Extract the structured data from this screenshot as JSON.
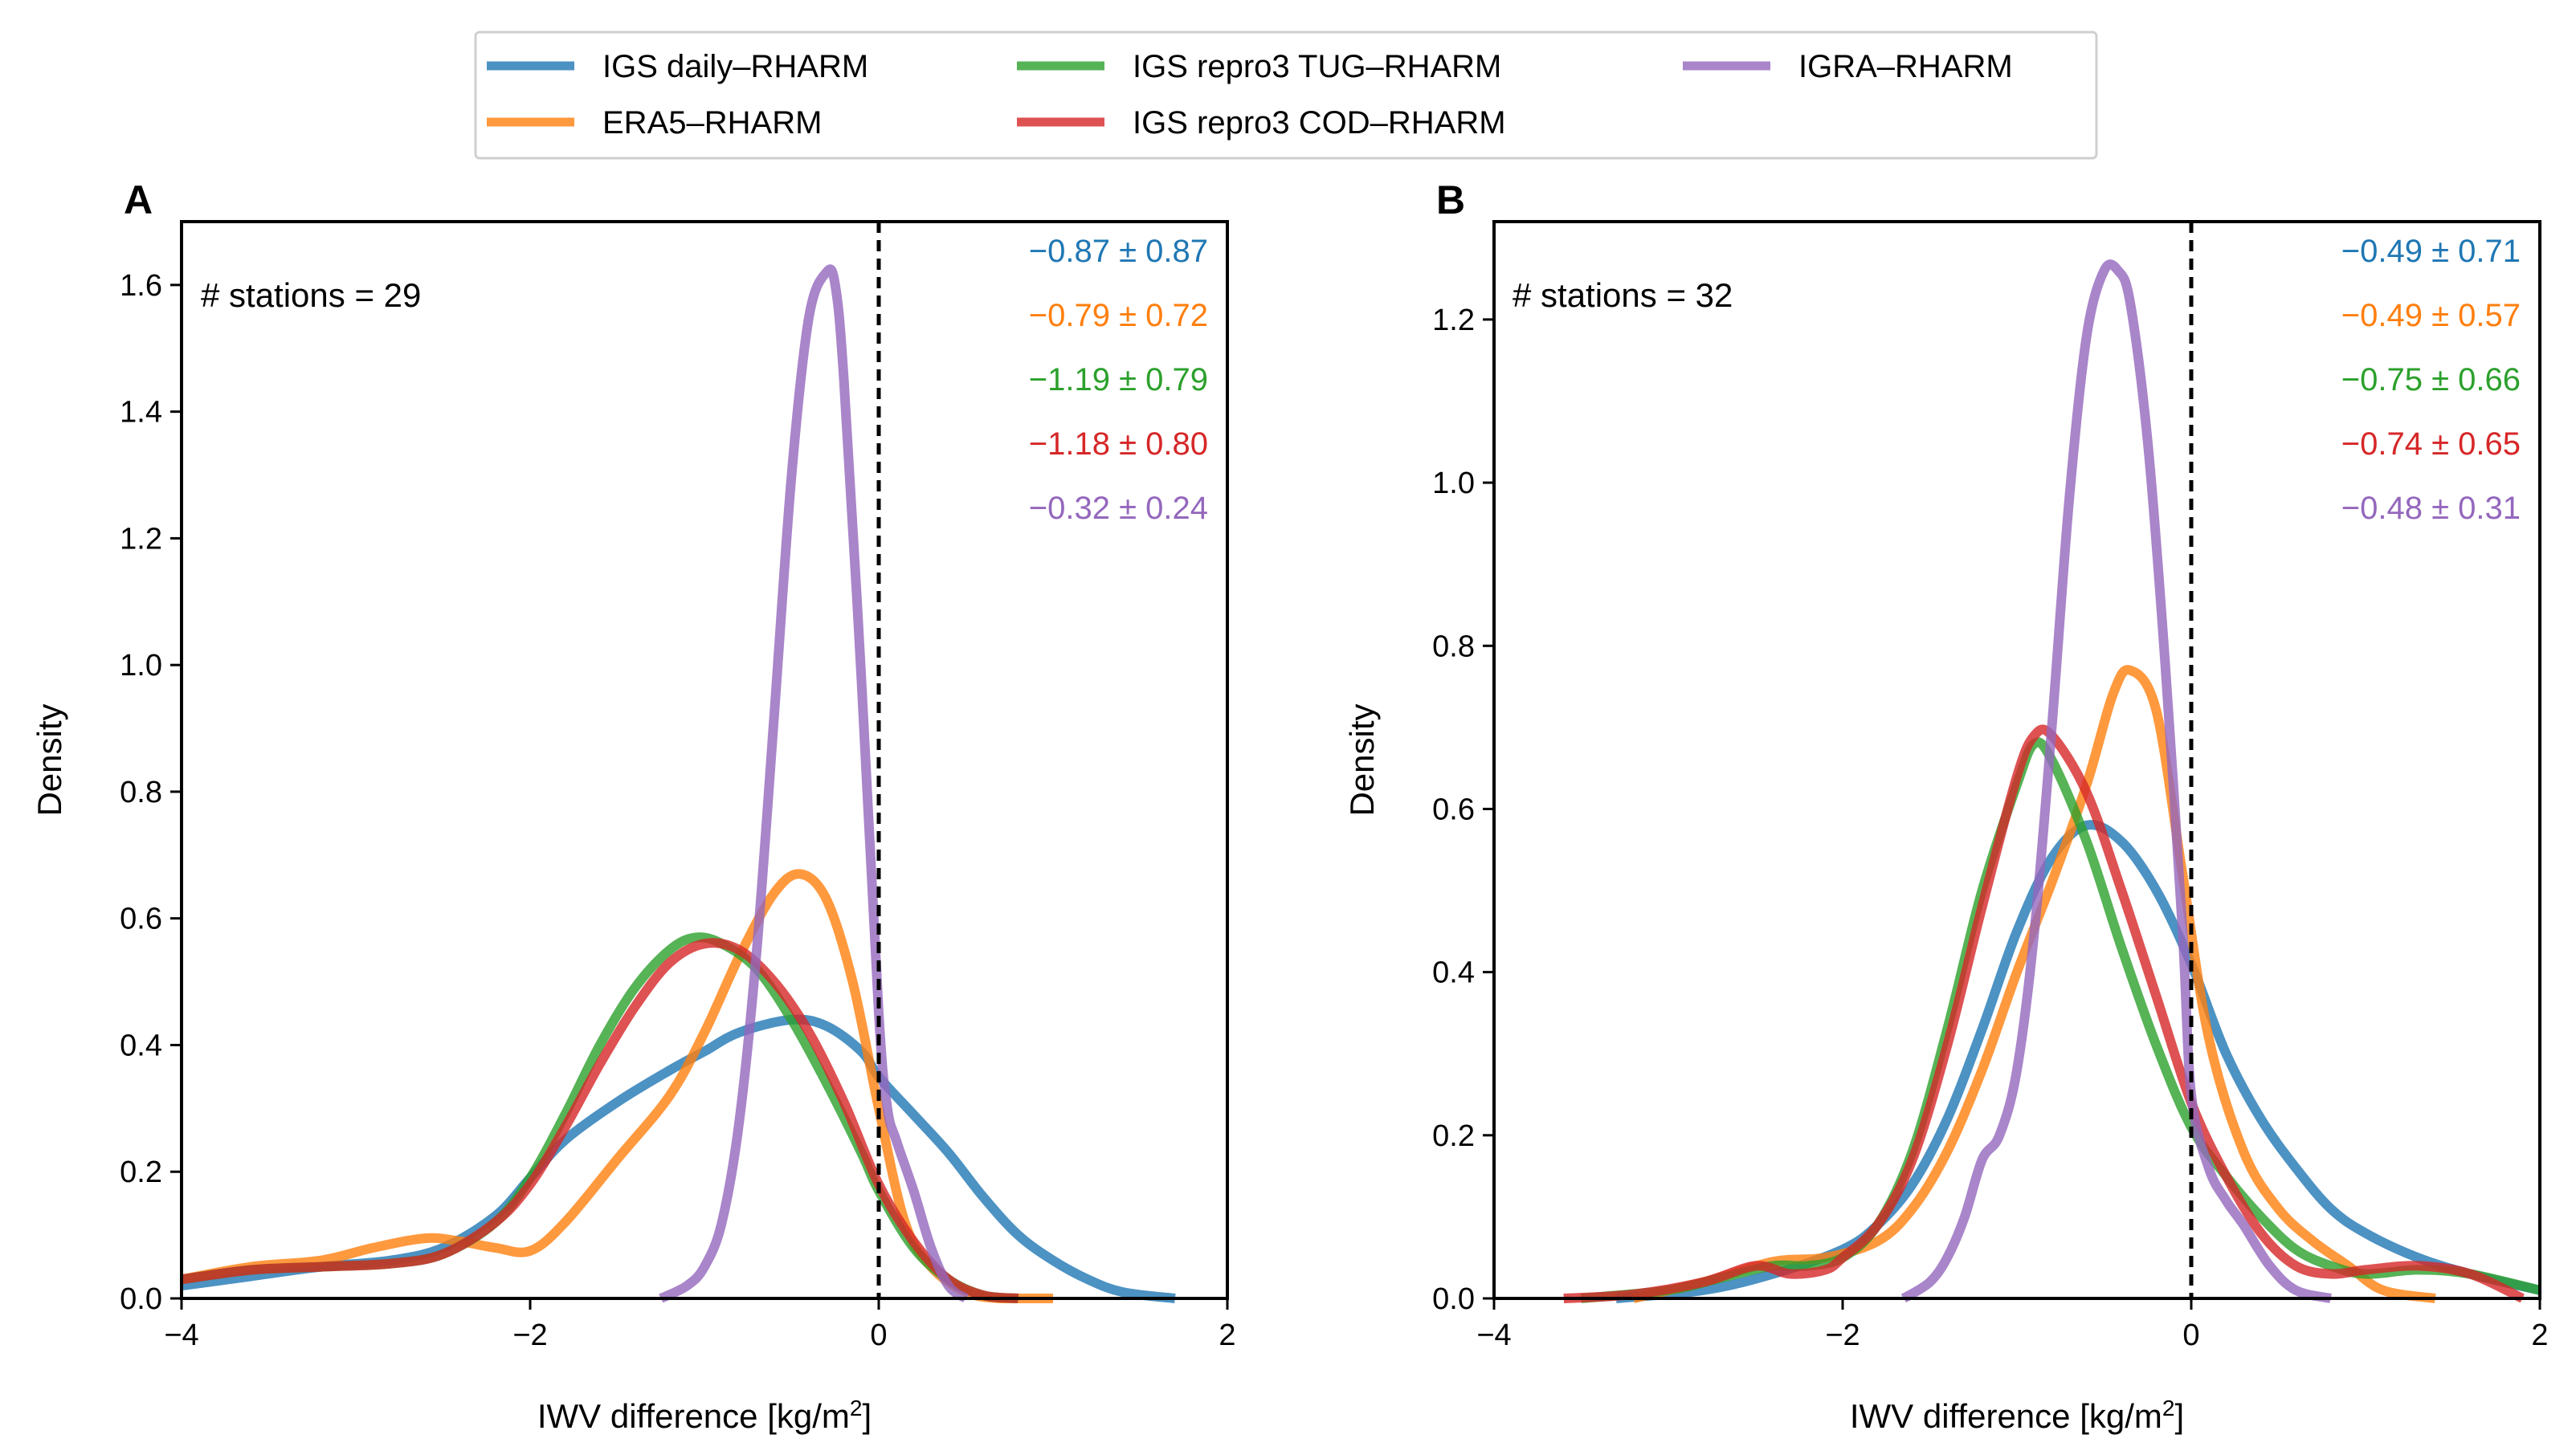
{
  "figure": {
    "legend": [
      {
        "label": "IGS daily–RHARM",
        "color": "#1f77b4"
      },
      {
        "label": "ERA5–RHARM",
        "color": "#ff7f0e"
      },
      {
        "label": "IGS repro3 TUG–RHARM",
        "color": "#2ca02c"
      },
      {
        "label": "IGS repro3 COD–RHARM",
        "color": "#d62728"
      },
      {
        "label": "IGRA–RHARM",
        "color": "#9467bd"
      }
    ]
  },
  "chart_data": [
    {
      "type": "line",
      "panel": "A",
      "xlabel": "IWV difference [kg/m",
      "xlabel_sup": "2",
      "xlabel_end": "]",
      "ylabel": "Density",
      "xlim": [
        -4,
        2
      ],
      "ylim": [
        0,
        1.7
      ],
      "xticks": [
        -4,
        -2,
        0,
        2
      ],
      "xtick_labels": [
        "−4",
        "−2",
        "0",
        "2"
      ],
      "yticks": [
        0.0,
        0.2,
        0.4,
        0.6,
        0.8,
        1.0,
        1.2,
        1.4,
        1.6
      ],
      "ytick_labels": [
        "0.0",
        "0.2",
        "0.4",
        "0.6",
        "0.8",
        "1.0",
        "1.2",
        "1.4",
        "1.6"
      ],
      "vline_x": 0,
      "annotation": "# stations = 29",
      "stats": [
        "−0.87 ± 0.87",
        "−0.79 ± 0.72",
        "−1.19 ± 0.79",
        "−1.18 ± 0.80",
        "−0.32 ± 0.24"
      ],
      "series": [
        {
          "name": "IGS daily–RHARM",
          "x": [
            -4.0,
            -3.6,
            -3.2,
            -2.8,
            -2.5,
            -2.2,
            -2.0,
            -1.8,
            -1.5,
            -1.2,
            -1.0,
            -0.8,
            -0.5,
            -0.3,
            -0.1,
            0.0,
            0.2,
            0.4,
            0.6,
            0.8,
            1.0,
            1.2,
            1.4,
            1.7
          ],
          "y": [
            0.02,
            0.035,
            0.05,
            0.06,
            0.08,
            0.13,
            0.19,
            0.25,
            0.31,
            0.36,
            0.39,
            0.42,
            0.44,
            0.43,
            0.39,
            0.35,
            0.29,
            0.23,
            0.16,
            0.1,
            0.06,
            0.03,
            0.01,
            0.0
          ]
        },
        {
          "name": "ERA5–RHARM",
          "x": [
            -4.0,
            -3.6,
            -3.2,
            -2.9,
            -2.6,
            -2.4,
            -2.2,
            -2.0,
            -1.8,
            -1.5,
            -1.2,
            -1.0,
            -0.8,
            -0.6,
            -0.45,
            -0.3,
            -0.15,
            0.0,
            0.15,
            0.3,
            0.5,
            0.7,
            1.0
          ],
          "y": [
            0.03,
            0.05,
            0.06,
            0.08,
            0.095,
            0.09,
            0.08,
            0.075,
            0.12,
            0.22,
            0.32,
            0.42,
            0.54,
            0.64,
            0.67,
            0.63,
            0.5,
            0.3,
            0.12,
            0.05,
            0.01,
            0.0,
            0.0
          ]
        },
        {
          "name": "IGS repro3 TUG–RHARM",
          "x": [
            -4.0,
            -3.6,
            -3.2,
            -2.8,
            -2.5,
            -2.2,
            -2.0,
            -1.8,
            -1.6,
            -1.4,
            -1.2,
            -1.05,
            -0.9,
            -0.7,
            -0.5,
            -0.3,
            -0.1,
            0.0,
            0.2,
            0.4,
            0.6,
            0.8
          ],
          "y": [
            0.03,
            0.045,
            0.05,
            0.055,
            0.07,
            0.12,
            0.19,
            0.29,
            0.4,
            0.49,
            0.55,
            0.57,
            0.56,
            0.52,
            0.44,
            0.34,
            0.23,
            0.17,
            0.08,
            0.03,
            0.005,
            0.0
          ]
        },
        {
          "name": "IGS repro3 COD–RHARM",
          "x": [
            -4.0,
            -3.6,
            -3.2,
            -2.8,
            -2.5,
            -2.2,
            -2.0,
            -1.8,
            -1.6,
            -1.4,
            -1.2,
            -1.0,
            -0.8,
            -0.6,
            -0.4,
            -0.2,
            0.0,
            0.2,
            0.4,
            0.6,
            0.8
          ],
          "y": [
            0.03,
            0.045,
            0.05,
            0.055,
            0.07,
            0.12,
            0.18,
            0.27,
            0.37,
            0.46,
            0.53,
            0.56,
            0.55,
            0.5,
            0.42,
            0.31,
            0.18,
            0.09,
            0.03,
            0.005,
            0.0
          ]
        },
        {
          "name": "IGRA–RHARM",
          "x": [
            -1.25,
            -1.1,
            -1.0,
            -0.9,
            -0.8,
            -0.7,
            -0.6,
            -0.5,
            -0.4,
            -0.3,
            -0.25,
            -0.2,
            -0.1,
            0.0,
            0.05,
            0.1,
            0.2,
            0.3,
            0.4,
            0.5
          ],
          "y": [
            0.0,
            0.02,
            0.05,
            0.12,
            0.28,
            0.55,
            0.92,
            1.3,
            1.55,
            1.62,
            1.6,
            1.45,
            0.98,
            0.45,
            0.3,
            0.25,
            0.17,
            0.08,
            0.02,
            0.0
          ]
        }
      ]
    },
    {
      "type": "line",
      "panel": "B",
      "xlabel": "IWV difference [kg/m",
      "xlabel_sup": "2",
      "xlabel_end": "]",
      "ylabel": "Density",
      "xlim": [
        -4,
        2
      ],
      "ylim": [
        0,
        1.32
      ],
      "xticks": [
        -4,
        -2,
        0,
        2
      ],
      "xtick_labels": [
        "−4",
        "−2",
        "0",
        "2"
      ],
      "yticks": [
        0.0,
        0.2,
        0.4,
        0.6,
        0.8,
        1.0,
        1.2
      ],
      "ytick_labels": [
        "0.0",
        "0.2",
        "0.4",
        "0.6",
        "0.8",
        "1.0",
        "1.2"
      ],
      "vline_x": 0,
      "annotation": "# stations = 32",
      "stats": [
        "−0.49 ± 0.71",
        "−0.49 ± 0.57",
        "−0.75 ± 0.66",
        "−0.74 ± 0.65",
        "−0.48 ± 0.31"
      ],
      "series": [
        {
          "name": "IGS daily–RHARM",
          "x": [
            -3.3,
            -2.8,
            -2.4,
            -2.0,
            -1.8,
            -1.6,
            -1.4,
            -1.2,
            -1.0,
            -0.8,
            -0.6,
            -0.4,
            -0.2,
            0.0,
            0.2,
            0.4,
            0.6,
            0.8,
            1.0,
            1.3,
            1.6,
            2.0
          ],
          "y": [
            0.0,
            0.01,
            0.03,
            0.06,
            0.09,
            0.14,
            0.22,
            0.33,
            0.45,
            0.54,
            0.58,
            0.56,
            0.5,
            0.41,
            0.3,
            0.22,
            0.16,
            0.11,
            0.08,
            0.05,
            0.03,
            0.01
          ]
        },
        {
          "name": "ERA5–RHARM",
          "x": [
            -3.2,
            -2.8,
            -2.4,
            -2.1,
            -1.8,
            -1.6,
            -1.4,
            -1.2,
            -1.0,
            -0.8,
            -0.6,
            -0.45,
            -0.35,
            -0.2,
            -0.05,
            0.1,
            0.3,
            0.5,
            0.7,
            0.9,
            1.1,
            1.4
          ],
          "y": [
            0.0,
            0.02,
            0.045,
            0.05,
            0.07,
            0.11,
            0.18,
            0.28,
            0.4,
            0.51,
            0.63,
            0.74,
            0.77,
            0.72,
            0.52,
            0.32,
            0.18,
            0.11,
            0.07,
            0.04,
            0.01,
            0.0
          ]
        },
        {
          "name": "IGS repro3 TUG–RHARM",
          "x": [
            -3.5,
            -3.0,
            -2.7,
            -2.4,
            -2.2,
            -2.0,
            -1.8,
            -1.6,
            -1.4,
            -1.2,
            -1.0,
            -0.9,
            -0.8,
            -0.6,
            -0.4,
            -0.2,
            0.0,
            0.2,
            0.4,
            0.6,
            0.8,
            1.0,
            1.3,
            1.6,
            2.0
          ],
          "y": [
            0.0,
            0.01,
            0.025,
            0.04,
            0.04,
            0.05,
            0.09,
            0.18,
            0.33,
            0.5,
            0.63,
            0.68,
            0.66,
            0.56,
            0.43,
            0.31,
            0.21,
            0.15,
            0.1,
            0.06,
            0.04,
            0.03,
            0.035,
            0.03,
            0.01
          ]
        },
        {
          "name": "IGS repro3 COD–RHARM",
          "x": [
            -3.6,
            -3.2,
            -2.8,
            -2.5,
            -2.3,
            -2.1,
            -2.0,
            -1.8,
            -1.6,
            -1.4,
            -1.2,
            -1.0,
            -0.9,
            -0.8,
            -0.6,
            -0.4,
            -0.2,
            0.0,
            0.2,
            0.4,
            0.6,
            0.8,
            1.0,
            1.3,
            1.6,
            1.9
          ],
          "y": [
            0.0,
            0.005,
            0.02,
            0.04,
            0.03,
            0.035,
            0.05,
            0.09,
            0.17,
            0.31,
            0.48,
            0.64,
            0.69,
            0.69,
            0.62,
            0.5,
            0.37,
            0.24,
            0.15,
            0.08,
            0.04,
            0.03,
            0.035,
            0.04,
            0.03,
            0.0
          ]
        },
        {
          "name": "IGRA–RHARM",
          "x": [
            -1.65,
            -1.5,
            -1.4,
            -1.3,
            -1.2,
            -1.1,
            -1.0,
            -0.9,
            -0.8,
            -0.7,
            -0.6,
            -0.5,
            -0.42,
            -0.35,
            -0.25,
            -0.15,
            -0.05,
            0.0,
            0.1,
            0.2,
            0.3,
            0.45,
            0.6,
            0.8
          ],
          "y": [
            0.0,
            0.02,
            0.05,
            0.1,
            0.17,
            0.2,
            0.28,
            0.45,
            0.7,
            0.98,
            1.18,
            1.26,
            1.26,
            1.22,
            1.05,
            0.78,
            0.45,
            0.25,
            0.16,
            0.12,
            0.09,
            0.04,
            0.01,
            0.0
          ]
        }
      ]
    }
  ]
}
